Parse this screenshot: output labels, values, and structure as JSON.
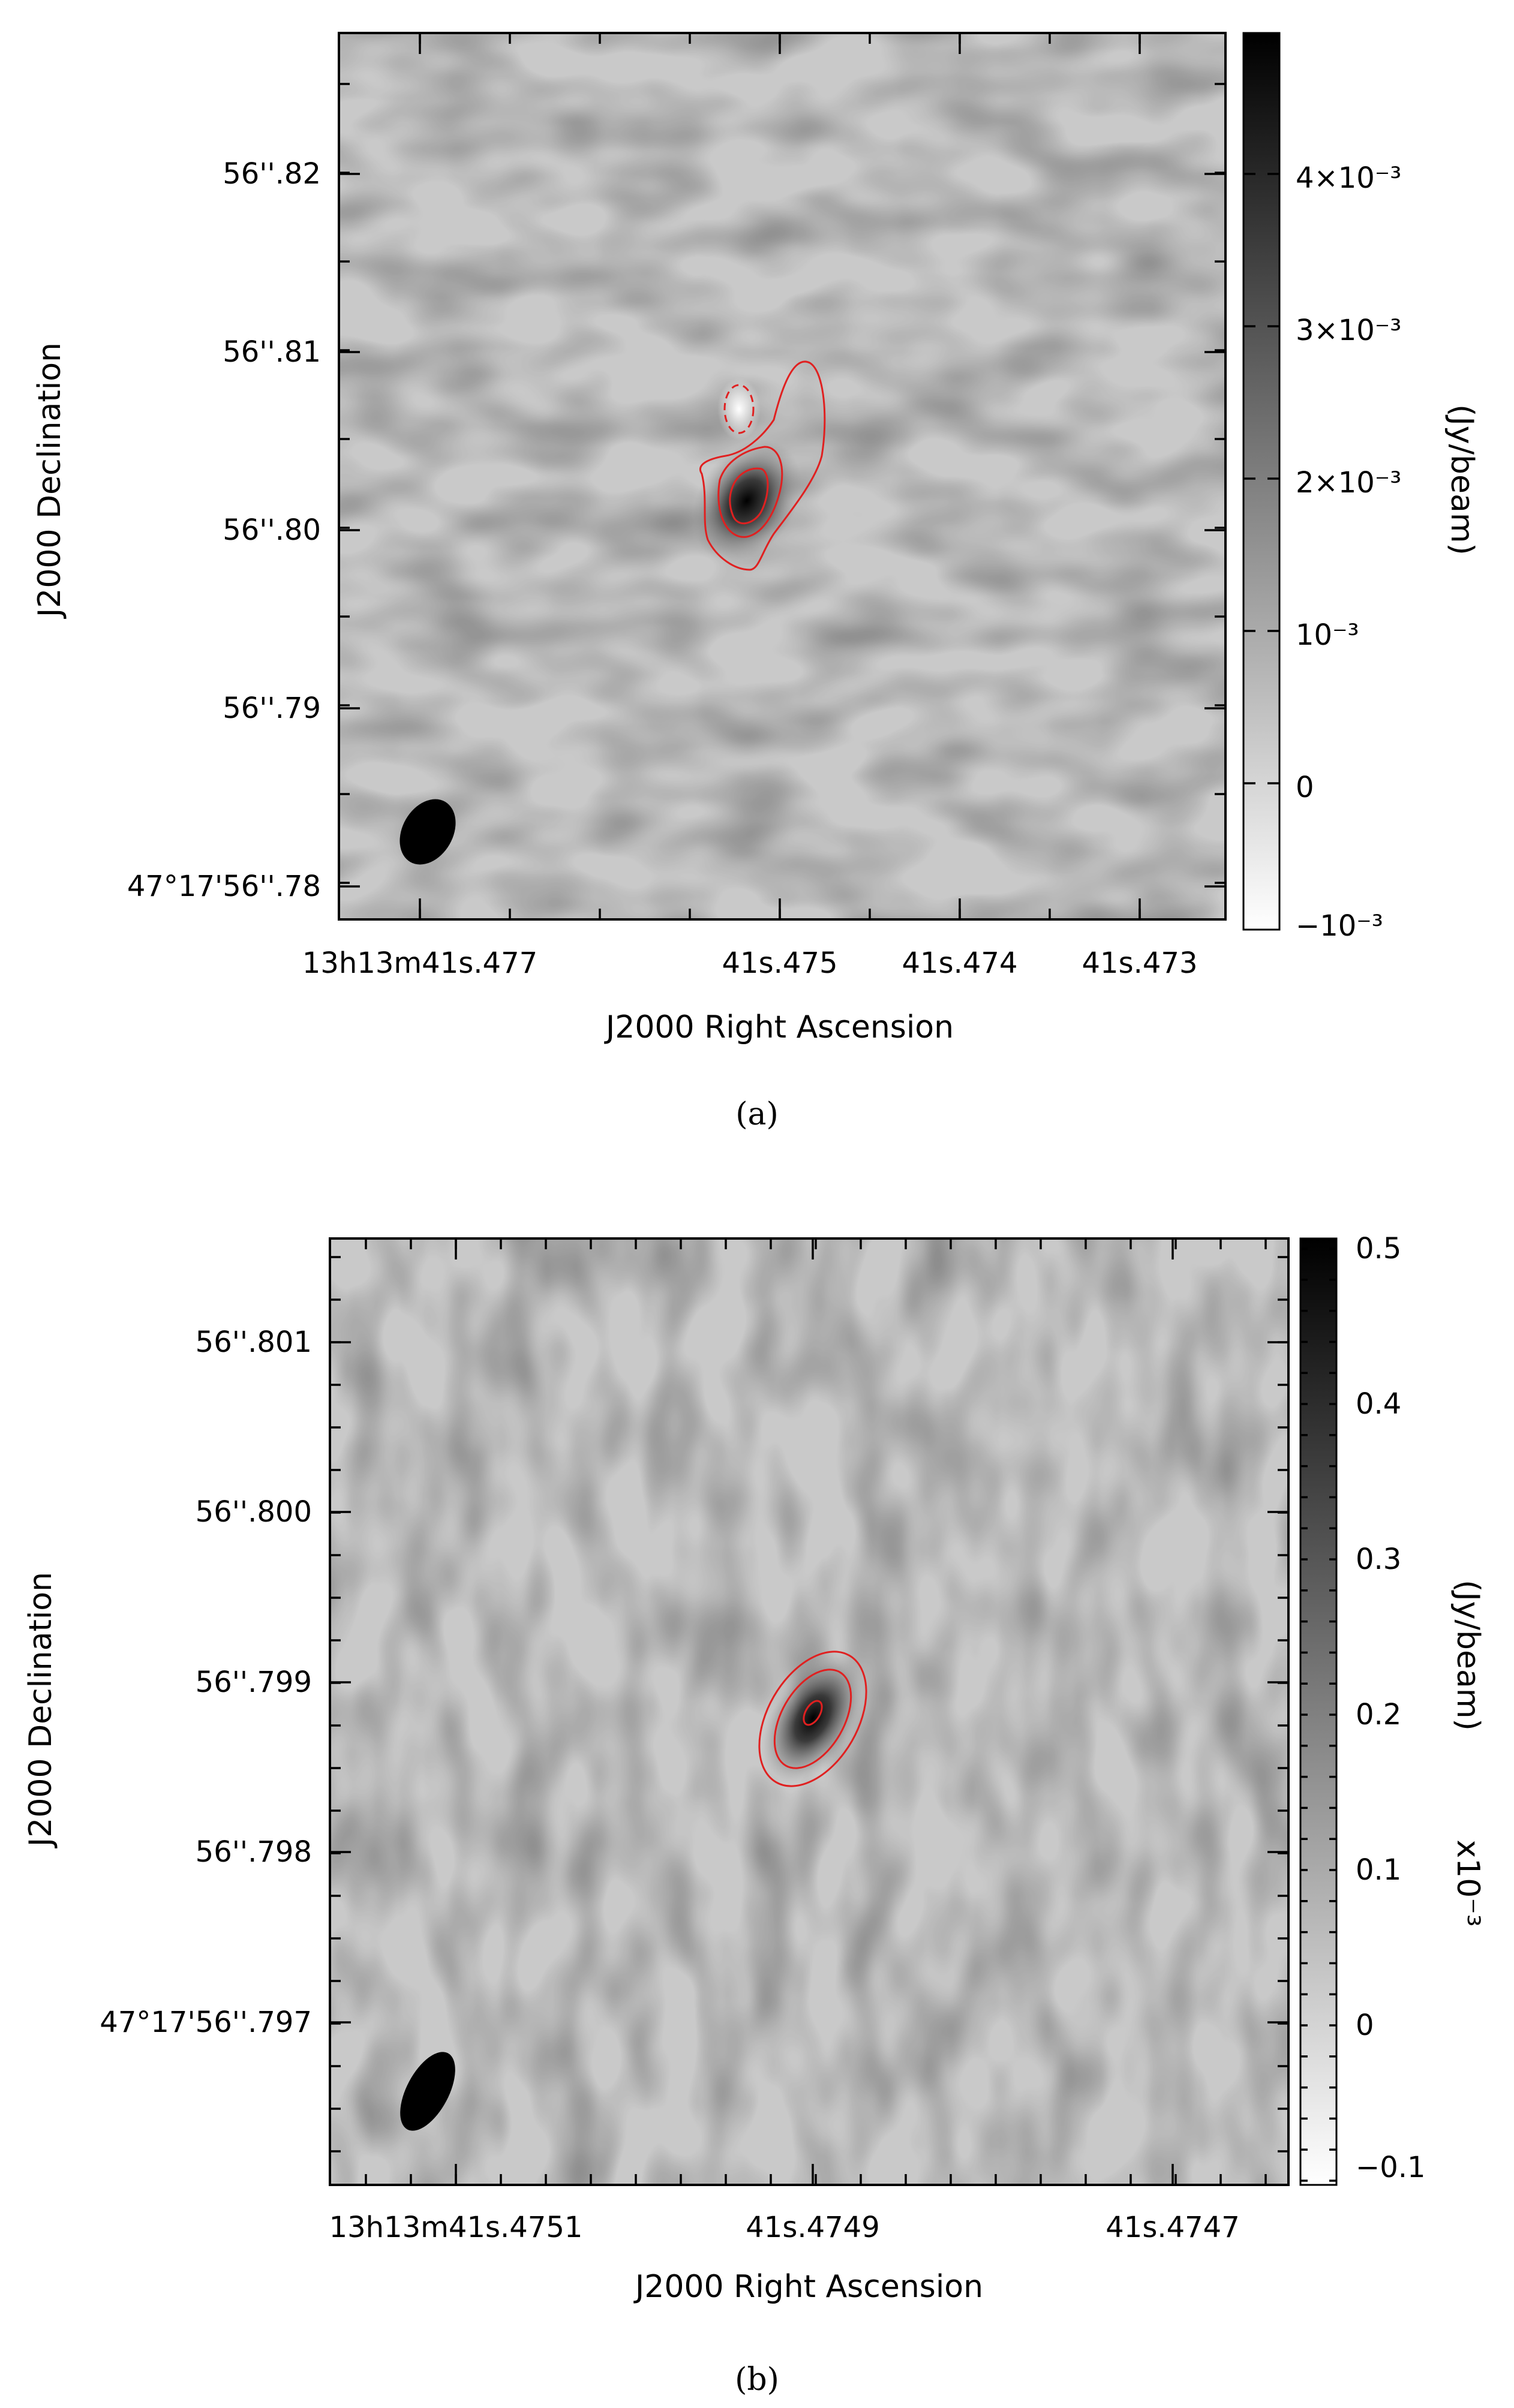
{
  "chart_data": [
    {
      "type": "heatmap",
      "panel": "(a)",
      "xlabel": "J2000 Right Ascension",
      "ylabel": "J2000 Declination",
      "x_tick_labels": [
        {
          "base": "13",
          "h": "h",
          "m_base": "13",
          "m": "m",
          "s_base": "41",
          "s": "s",
          "frac": ".477"
        },
        {
          "base": "41",
          "s": "s",
          "frac": ".475"
        },
        {
          "base": "41",
          "s": "s",
          "frac": ".474"
        },
        {
          "base": "41",
          "s": "s",
          "frac": ".473"
        }
      ],
      "x_tick_text": [
        "13h13m41s.477",
        "41s.475",
        "41s.474",
        "41s.473"
      ],
      "y_tick_text": [
        "56''.82",
        "56''.81",
        "56''.80",
        "56''.79",
        "47°17'56''.78"
      ],
      "colorbar": {
        "label": "(Jy/beam)",
        "ticks": [
          "4×10⁻³",
          "3×10⁻³",
          "2×10⁻³",
          "10⁻³",
          "0",
          "−10⁻³"
        ],
        "range": [
          -0.001,
          0.0049
        ]
      },
      "source": {
        "peak_jy_per_beam": 0.0049
      },
      "contour_color": "#e02020",
      "caption": "(a)"
    },
    {
      "type": "heatmap",
      "panel": "(b)",
      "xlabel": "J2000 Right Ascension",
      "ylabel": "J2000 Declination",
      "x_tick_text": [
        "13h13m41s.4751",
        "41s.4749",
        "41s.4747"
      ],
      "y_tick_text": [
        "56''.801",
        "56''.800",
        "56''.799",
        "56''.798",
        "47°17'56''.797"
      ],
      "colorbar": {
        "label": "(Jy/beam)",
        "multiplier": "x10⁻³",
        "ticks": [
          "0.5",
          "0.4",
          "0.3",
          "0.2",
          "0.1",
          "0",
          "−0.1"
        ],
        "range": [
          -0.12,
          0.52
        ]
      },
      "source": {
        "peak_jy_per_beam_e3": 0.52
      },
      "contour_color": "#e02020",
      "caption": "(b)"
    }
  ],
  "colors": {
    "contour": "#e02020",
    "background_gray": "#c9c9c9",
    "beam": "#000000"
  }
}
